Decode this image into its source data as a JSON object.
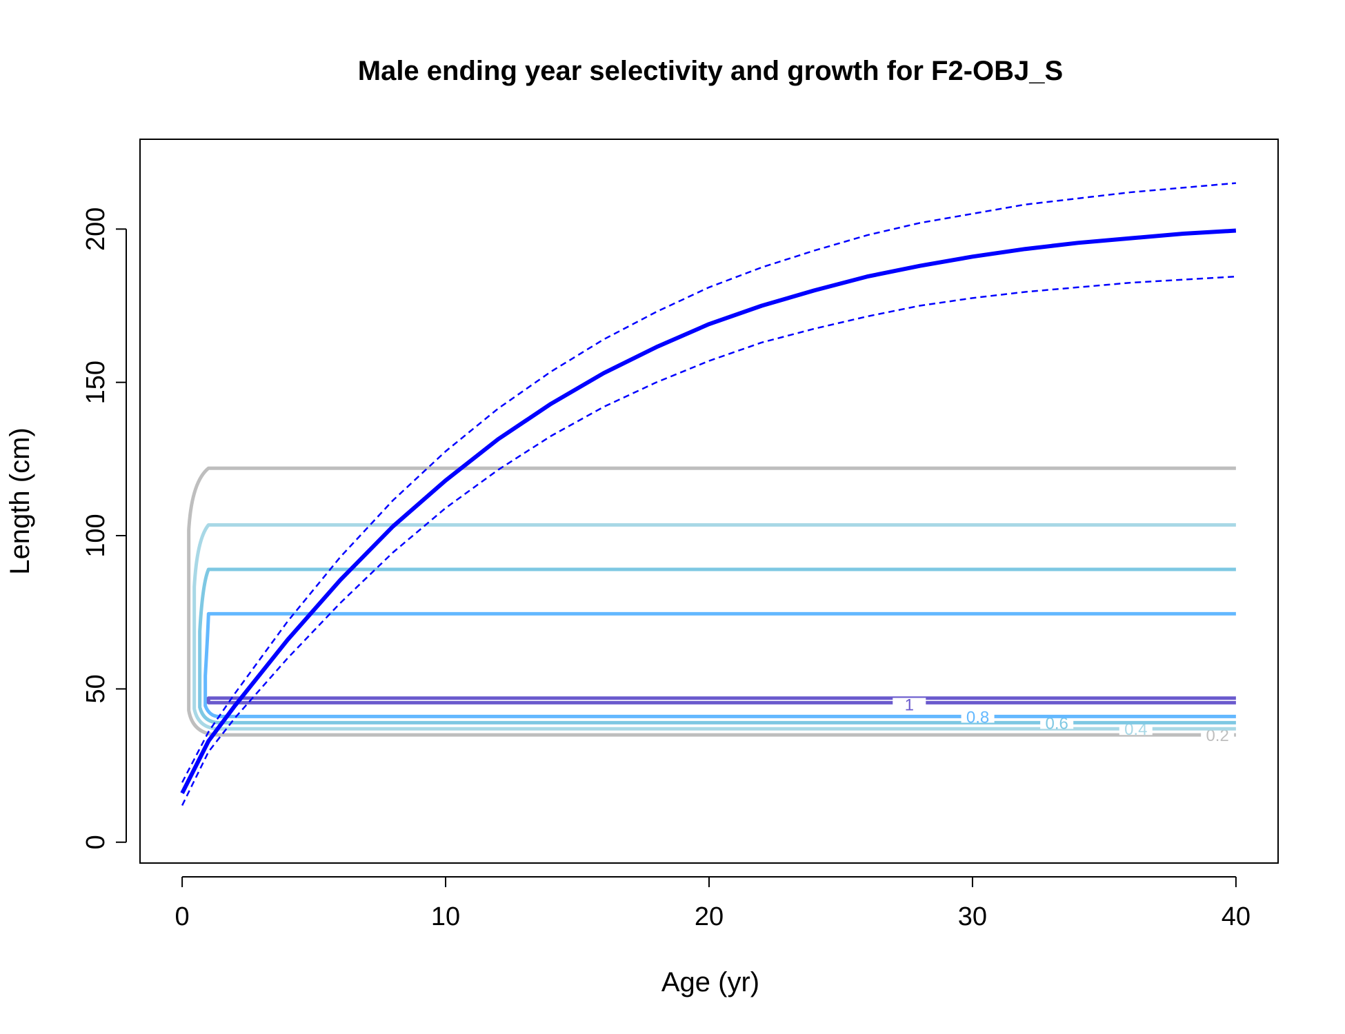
{
  "chart_data": {
    "type": "line",
    "title": "Male ending year selectivity and growth for F2-OBJ_S",
    "xlabel": "Age (yr)",
    "ylabel": "Length (cm)",
    "xlim": [
      -1.6,
      41.6
    ],
    "ylim": [
      -6.8,
      229.3
    ],
    "xticks": [
      0,
      10,
      20,
      30,
      40
    ],
    "yticks": [
      0,
      50,
      100,
      150,
      200
    ],
    "grid": false,
    "legend": "none",
    "series": [
      {
        "role": "growth-mean",
        "color": "#0000FF",
        "style": "solid",
        "points": [
          [
            0,
            16
          ],
          [
            1,
            33
          ],
          [
            2,
            44.5
          ],
          [
            4,
            66
          ],
          [
            6,
            85.5
          ],
          [
            8,
            103
          ],
          [
            10,
            118
          ],
          [
            12,
            131.5
          ],
          [
            14,
            143
          ],
          [
            16,
            153
          ],
          [
            18,
            161.5
          ],
          [
            20,
            169
          ],
          [
            22,
            175
          ],
          [
            24,
            180
          ],
          [
            26,
            184.5
          ],
          [
            28,
            188
          ],
          [
            30,
            191
          ],
          [
            32,
            193.5
          ],
          [
            34,
            195.5
          ],
          [
            36,
            197
          ],
          [
            38,
            198.5
          ],
          [
            40,
            199.5
          ]
        ]
      },
      {
        "role": "growth-upper",
        "color": "#0000FF",
        "style": "dashed",
        "points": [
          [
            0,
            19.5
          ],
          [
            1,
            36
          ],
          [
            2,
            48.5
          ],
          [
            4,
            72
          ],
          [
            6,
            93
          ],
          [
            8,
            111.5
          ],
          [
            10,
            127.5
          ],
          [
            12,
            141.5
          ],
          [
            14,
            153.5
          ],
          [
            16,
            164
          ],
          [
            18,
            173
          ],
          [
            20,
            181
          ],
          [
            22,
            187.5
          ],
          [
            24,
            193
          ],
          [
            26,
            198
          ],
          [
            28,
            202
          ],
          [
            30,
            205
          ],
          [
            32,
            208
          ],
          [
            34,
            210
          ],
          [
            36,
            212
          ],
          [
            38,
            213.5
          ],
          [
            40,
            215
          ]
        ]
      },
      {
        "role": "growth-lower",
        "color": "#0000FF",
        "style": "dashed",
        "points": [
          [
            0,
            12
          ],
          [
            1,
            29.5
          ],
          [
            2,
            40.5
          ],
          [
            4,
            60
          ],
          [
            6,
            78
          ],
          [
            8,
            94.5
          ],
          [
            10,
            109
          ],
          [
            12,
            121.5
          ],
          [
            14,
            132.5
          ],
          [
            16,
            142
          ],
          [
            18,
            150
          ],
          [
            20,
            157
          ],
          [
            22,
            163
          ],
          [
            24,
            167.5
          ],
          [
            26,
            171.5
          ],
          [
            28,
            175
          ],
          [
            30,
            177.5
          ],
          [
            32,
            179.5
          ],
          [
            34,
            181
          ],
          [
            36,
            182.5
          ],
          [
            38,
            183.5
          ],
          [
            40,
            184.5
          ]
        ]
      }
    ],
    "selectivity_contours": [
      {
        "level": "0.2",
        "color": "#BEBEBE",
        "upper_length": 122,
        "lower_length": 35,
        "corner_bottom_length": 43,
        "label_age": 39.3
      },
      {
        "level": "0.4",
        "color": "#A8D8E6",
        "upper_length": 103.5,
        "lower_length": 37,
        "corner_bottom_length": 43.5,
        "label_age": 36.2
      },
      {
        "level": "0.6",
        "color": "#7EC8E3",
        "upper_length": 89,
        "lower_length": 39,
        "corner_bottom_length": 44,
        "label_age": 33.2
      },
      {
        "level": "0.8",
        "color": "#63B8FF",
        "upper_length": 74.5,
        "lower_length": 41,
        "corner_bottom_length": 44.5,
        "label_age": 30.2
      },
      {
        "level": "1",
        "color": "#6A5ACD",
        "upper_length": 47,
        "lower_length": 45.5,
        "corner_bottom_length": 45.5,
        "label_age": 27.6
      }
    ]
  }
}
